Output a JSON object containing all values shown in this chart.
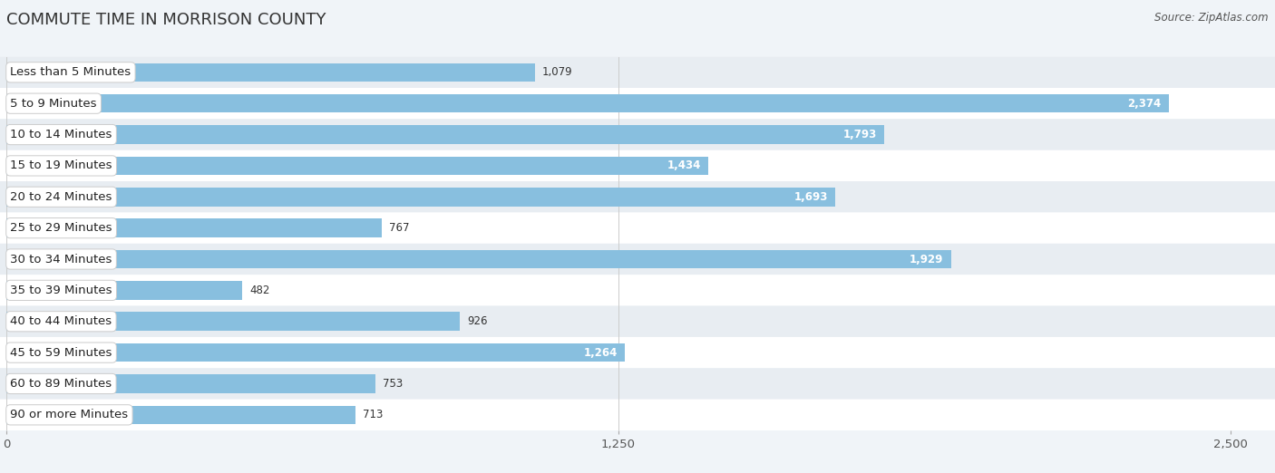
{
  "title": "COMMUTE TIME IN MORRISON COUNTY",
  "source": "Source: ZipAtlas.com",
  "categories": [
    "Less than 5 Minutes",
    "5 to 9 Minutes",
    "10 to 14 Minutes",
    "15 to 19 Minutes",
    "20 to 24 Minutes",
    "25 to 29 Minutes",
    "30 to 34 Minutes",
    "35 to 39 Minutes",
    "40 to 44 Minutes",
    "45 to 59 Minutes",
    "60 to 89 Minutes",
    "90 or more Minutes"
  ],
  "values": [
    1079,
    2374,
    1793,
    1434,
    1693,
    767,
    1929,
    482,
    926,
    1264,
    753,
    713
  ],
  "bar_color": "#88bfdf",
  "row_bg_light": "#ffffff",
  "row_bg_dark": "#e8edf2",
  "fig_bg": "#f0f4f8",
  "xlim": [
    0,
    2500
  ],
  "xticks": [
    0,
    1250,
    2500
  ],
  "title_fontsize": 13,
  "label_fontsize": 9.5,
  "value_fontsize": 8.5,
  "source_fontsize": 8.5,
  "bar_height": 0.6,
  "inside_threshold": 1200
}
